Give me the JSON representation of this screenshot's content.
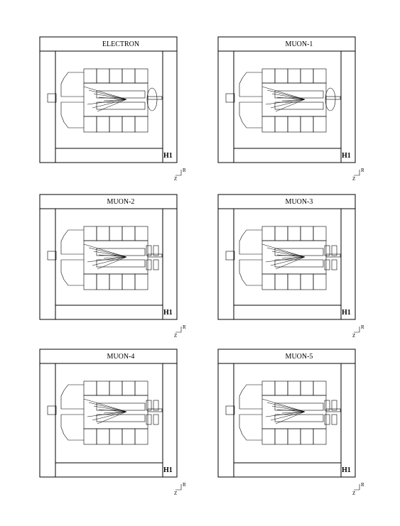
{
  "panels": [
    {
      "title": "ELECTRON",
      "logo": "H1",
      "axis_z": "Z",
      "axis_r": "R"
    },
    {
      "title": "MUON-1",
      "logo": "H1",
      "axis_z": "Z",
      "axis_r": "R"
    },
    {
      "title": "MUON-2",
      "logo": "H1",
      "axis_z": "Z",
      "axis_r": "R"
    },
    {
      "title": "MUON-3",
      "logo": "H1",
      "axis_z": "Z",
      "axis_r": "R"
    },
    {
      "title": "MUON-4",
      "logo": "H1",
      "axis_z": "Z",
      "axis_r": "R"
    },
    {
      "title": "MUON-5",
      "logo": "H1",
      "axis_z": "Z",
      "axis_r": "R"
    }
  ]
}
